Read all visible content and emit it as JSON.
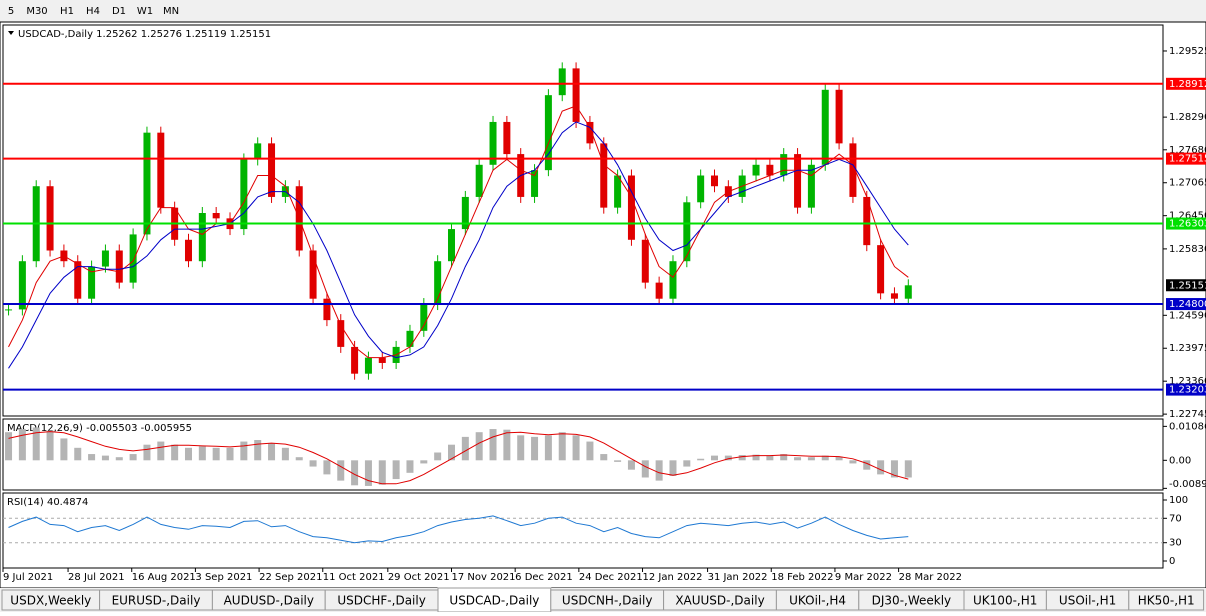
{
  "toolbar": {
    "timeframes": [
      "5",
      "M30",
      "H1",
      "H4",
      "D1",
      "W1",
      "MN"
    ]
  },
  "chart_data": [
    {
      "type": "candlestick",
      "title": "USDCAD-,Daily 1.25262 1.25276 1.25119 1.25151",
      "colors": {
        "up": "#00b400",
        "down": "#e00000"
      },
      "close": [
        1.247,
        1.256,
        1.27,
        1.258,
        1.256,
        1.249,
        1.255,
        1.258,
        1.252,
        1.261,
        1.28,
        1.266,
        1.26,
        1.256,
        1.265,
        1.264,
        1.262,
        1.275,
        1.278,
        1.268,
        1.27,
        1.258,
        1.249,
        1.245,
        1.24,
        1.235,
        1.238,
        1.237,
        1.24,
        1.243,
        1.248,
        1.256,
        1.262,
        1.268,
        1.274,
        1.282,
        1.276,
        1.268,
        1.273,
        1.287,
        1.292,
        1.282,
        1.278,
        1.266,
        1.272,
        1.26,
        1.252,
        1.249,
        1.256,
        1.267,
        1.272,
        1.27,
        1.268,
        1.272,
        1.274,
        1.272,
        1.276,
        1.266,
        1.274,
        1.288,
        1.278,
        1.268,
        1.259,
        1.25,
        1.249,
        1.2515
      ],
      "series": [
        {
          "color": "#e00000",
          "values": [
            1.24,
            1.245,
            1.252,
            1.256,
            1.257,
            1.2555,
            1.254,
            1.2545,
            1.254,
            1.256,
            1.262,
            1.266,
            1.266,
            1.262,
            1.261,
            1.263,
            1.263,
            1.267,
            1.272,
            1.272,
            1.27,
            1.264,
            1.257,
            1.25,
            1.244,
            1.24,
            1.238,
            1.238,
            1.2385,
            1.24,
            1.244,
            1.249,
            1.255,
            1.261,
            1.267,
            1.273,
            1.275,
            1.273,
            1.272,
            1.278,
            1.284,
            1.285,
            1.281,
            1.274,
            1.272,
            1.268,
            1.261,
            1.255,
            1.253,
            1.257,
            1.262,
            1.267,
            1.269,
            1.27,
            1.271,
            1.272,
            1.273,
            1.273,
            1.272,
            1.274,
            1.276,
            1.274,
            1.268,
            1.26,
            1.255,
            1.253
          ]
        },
        {
          "color": "#0000c8",
          "values": [
            1.236,
            1.24,
            1.245,
            1.25,
            1.253,
            1.255,
            1.255,
            1.2545,
            1.2545,
            1.255,
            1.257,
            1.26,
            1.262,
            1.262,
            1.262,
            1.2625,
            1.263,
            1.265,
            1.268,
            1.269,
            1.269,
            1.267,
            1.263,
            1.258,
            1.252,
            1.246,
            1.242,
            1.239,
            1.238,
            1.2385,
            1.24,
            1.244,
            1.249,
            1.255,
            1.26,
            1.266,
            1.27,
            1.272,
            1.273,
            1.276,
            1.28,
            1.282,
            1.281,
            1.278,
            1.274,
            1.269,
            1.264,
            1.26,
            1.258,
            1.259,
            1.262,
            1.265,
            1.268,
            1.269,
            1.27,
            1.271,
            1.272,
            1.273,
            1.273,
            1.274,
            1.275,
            1.274,
            1.27,
            1.266,
            1.262,
            1.259
          ]
        }
      ],
      "levels": [
        {
          "value": 1.28912,
          "label": "1.28912",
          "color": "#ff0000"
        },
        {
          "value": 1.27515,
          "label": "1.27515",
          "color": "#ff0000"
        },
        {
          "value": 1.26303,
          "label": "1.26303",
          "color": "#00e000"
        },
        {
          "value": 1.248,
          "label": "1.24800",
          "color": "#0000c8"
        },
        {
          "value": 1.23203,
          "label": "1.23203",
          "color": "#0000c8"
        }
      ],
      "current": {
        "value": 1.25151,
        "label": "1.25151"
      },
      "ylim": [
        1.2271,
        1.3001
      ],
      "yticks": [
        {
          "value": 1.29525,
          "label": "1.29525"
        },
        {
          "value": 1.2829,
          "label": "1.28290"
        },
        {
          "value": 1.2768,
          "label": "1.27680"
        },
        {
          "value": 1.27065,
          "label": "1.27065"
        },
        {
          "value": 1.2645,
          "label": "1.26450"
        },
        {
          "value": 1.2583,
          "label": "1.25830"
        },
        {
          "value": 1.2459,
          "label": "1.24590"
        },
        {
          "value": 1.23975,
          "label": "1.23975"
        },
        {
          "value": 1.2336,
          "label": "1.23360"
        },
        {
          "value": 1.22745,
          "label": "1.22745"
        }
      ],
      "xlim": [
        -0.4,
        83.4
      ],
      "xticks": [
        {
          "value": -0.4,
          "label": "9 Jul 2021"
        },
        {
          "value": 4.3,
          "label": "28 Jul 2021"
        },
        {
          "value": 8.9,
          "label": "16 Aug 2021"
        },
        {
          "value": 13.5,
          "label": "3 Sep 2021"
        },
        {
          "value": 18.1,
          "label": "22 Sep 2021"
        },
        {
          "value": 22.7,
          "label": "11 Oct 2021"
        },
        {
          "value": 27.4,
          "label": "29 Oct 2021"
        },
        {
          "value": 32.0,
          "label": "17 Nov 2021"
        },
        {
          "value": 36.6,
          "label": "6 Dec 2021"
        },
        {
          "value": 41.2,
          "label": "24 Dec 2021"
        },
        {
          "value": 45.8,
          "label": "12 Jan 2022"
        },
        {
          "value": 50.5,
          "label": "31 Jan 2022"
        },
        {
          "value": 55.1,
          "label": "18 Feb 2022"
        },
        {
          "value": 59.7,
          "label": "9 Mar 2022"
        },
        {
          "value": 64.3,
          "label": "28 Mar 2022"
        }
      ]
    },
    {
      "type": "macd",
      "title": "MACD(12,26,9) -0.005503 -0.005955",
      "series": [
        {
          "color": "#b4b4b4",
          "values": [
            0.009,
            0.01,
            0.0105,
            0.0095,
            0.007,
            0.004,
            0.002,
            0.0015,
            0.001,
            0.002,
            0.005,
            0.006,
            0.005,
            0.004,
            0.0045,
            0.004,
            0.004,
            0.006,
            0.0065,
            0.0055,
            0.004,
            0.001,
            -0.002,
            -0.0045,
            -0.0065,
            -0.008,
            -0.0082,
            -0.0078,
            -0.006,
            -0.004,
            -0.001,
            0.0025,
            0.005,
            0.0075,
            0.009,
            0.01,
            0.0098,
            0.008,
            0.0075,
            0.008,
            0.009,
            0.008,
            0.006,
            0.002,
            -0.0005,
            -0.003,
            -0.0055,
            -0.0065,
            -0.005,
            -0.002,
            0.0005,
            0.0015,
            0.0015,
            0.0017,
            0.0018,
            0.0015,
            0.002,
            0.001,
            0.001,
            0.0015,
            0.0012,
            -0.001,
            -0.003,
            -0.0045,
            -0.0055,
            -0.0055
          ]
        },
        {
          "color": "#e00000",
          "values": [
            0.007,
            0.008,
            0.0088,
            0.0092,
            0.0088,
            0.0075,
            0.006,
            0.0045,
            0.0035,
            0.003,
            0.0035,
            0.0042,
            0.0048,
            0.0048,
            0.0046,
            0.0045,
            0.0043,
            0.0046,
            0.0052,
            0.0055,
            0.0052,
            0.0042,
            0.0025,
            0.0005,
            -0.002,
            -0.0045,
            -0.0065,
            -0.0075,
            -0.0075,
            -0.0065,
            -0.0045,
            -0.002,
            0.0005,
            0.003,
            0.0055,
            0.0075,
            0.0088,
            0.009,
            0.0085,
            0.0082,
            0.0085,
            0.0083,
            0.0075,
            0.0055,
            0.003,
            0.0005,
            -0.002,
            -0.004,
            -0.0048,
            -0.004,
            -0.0025,
            -0.0008,
            0.0005,
            0.0012,
            0.0015,
            0.0015,
            0.0017,
            0.0015,
            0.0013,
            0.0013,
            0.0012,
            0.0005,
            -0.001,
            -0.003,
            -0.0048,
            -0.006
          ]
        }
      ],
      "ylim": [
        -0.0095,
        0.0129
      ],
      "yticks": [
        {
          "value": 0.010865,
          "label": "0.010865"
        },
        {
          "value": 0,
          "label": "0.00"
        },
        {
          "value": -0.008974,
          "label": "-0.008974"
        }
      ]
    },
    {
      "type": "rsi",
      "title": "RSI(14) 40.4874",
      "color": "#1e78d2",
      "values": [
        55,
        65,
        72,
        60,
        58,
        48,
        55,
        58,
        50,
        60,
        72,
        60,
        55,
        52,
        58,
        57,
        55,
        65,
        66,
        56,
        58,
        48,
        40,
        38,
        34,
        30,
        33,
        32,
        38,
        42,
        48,
        58,
        64,
        68,
        70,
        74,
        66,
        58,
        62,
        70,
        72,
        62,
        58,
        48,
        55,
        45,
        40,
        38,
        48,
        58,
        62,
        60,
        58,
        62,
        64,
        60,
        64,
        54,
        62,
        72,
        60,
        50,
        42,
        36,
        38,
        40
      ],
      "ylim": [
        0,
        100
      ],
      "yticks": [
        100,
        70,
        30,
        0
      ],
      "levels": [
        70,
        30
      ]
    }
  ],
  "tabs": {
    "items": [
      "USDX,Weekly",
      "EURUSD-,Daily",
      "AUDUSD-,Daily",
      "USDCHF-,Daily",
      "USDCAD-,Daily",
      "USDCNH-,Daily",
      "XAUUSD-,Daily",
      "UKOil-,H4",
      "DJ30-,Weekly",
      "UK100-,H1",
      "USOil-,H1",
      "HK50-,H1"
    ],
    "active": "USDCAD-,Daily"
  }
}
